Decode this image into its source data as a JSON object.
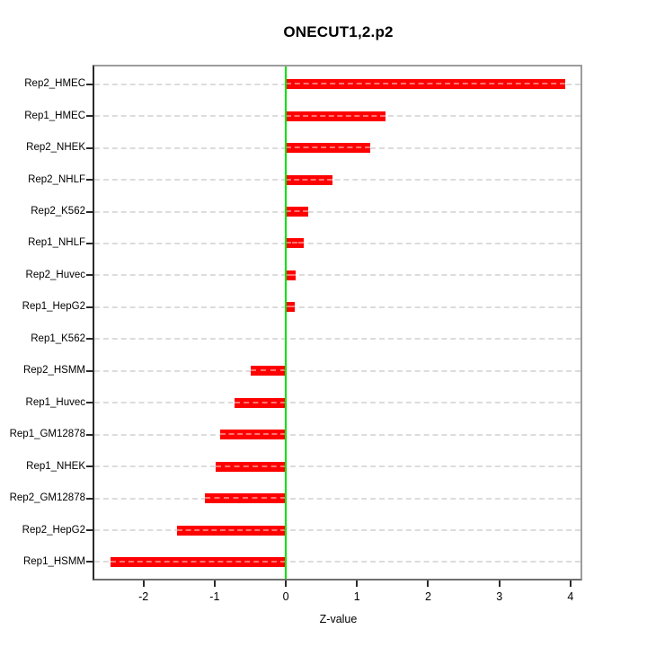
{
  "title": "ONECUT1,2.p2",
  "axis": {
    "xlabel": "Z-value"
  },
  "colors": {
    "bar": "#ff0000",
    "zero_line": "#00e400",
    "grid": "#dcdcdc",
    "box": "#9c9c9c",
    "tick": "#2a2a2a"
  },
  "chart_data": {
    "type": "bar",
    "orientation": "horizontal",
    "title": "ONECUT1,2.p2",
    "xlabel": "Z-value",
    "categories": [
      "Rep2_HMEC",
      "Rep1_HMEC",
      "Rep2_NHEK",
      "Rep2_NHLF",
      "Rep2_K562",
      "Rep1_NHLF",
      "Rep2_Huvec",
      "Rep1_HepG2",
      "Rep1_K562",
      "Rep2_HSMM",
      "Rep1_Huvec",
      "Rep1_GM12878",
      "Rep1_NHEK",
      "Rep2_GM12878",
      "Rep2_HepG2",
      "Rep1_HSMM"
    ],
    "values": [
      3.92,
      1.4,
      1.19,
      0.66,
      0.32,
      0.25,
      0.14,
      0.13,
      0.0,
      -0.49,
      -0.72,
      -0.92,
      -0.98,
      -1.14,
      -1.53,
      -2.46
    ],
    "xlim": [
      -2.69,
      4.14
    ],
    "xticks": [
      -2,
      -1,
      0,
      1,
      2,
      3,
      4
    ],
    "grid": "dashed-horizontal",
    "zero_line": 0,
    "legend": null,
    "bar_color": "#ff0000",
    "zero_line_color": "#00e400"
  }
}
